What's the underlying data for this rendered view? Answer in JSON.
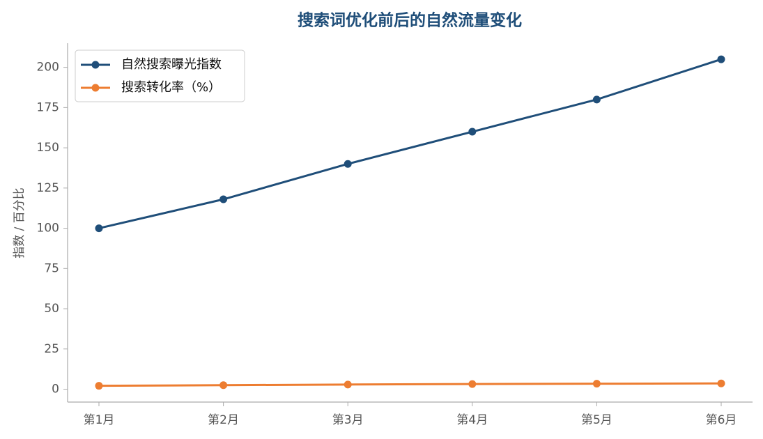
{
  "chart_data": {
    "type": "line",
    "title": "搜索词优化前后的自然流量变化",
    "ylabel": "指数 / 百分比",
    "categories": [
      "第1月",
      "第2月",
      "第3月",
      "第4月",
      "第5月",
      "第6月"
    ],
    "series": [
      {
        "name": "自然搜索曝光指数",
        "color": "#1f4e79",
        "values": [
          100,
          118,
          140,
          160,
          180,
          205
        ]
      },
      {
        "name": "搜索转化率（%）",
        "color": "#ed7d31",
        "values": [
          2.1,
          2.5,
          2.9,
          3.2,
          3.4,
          3.6
        ]
      }
    ],
    "ylim": [
      -8,
      215
    ],
    "yticks": [
      0,
      25,
      50,
      75,
      100,
      125,
      150,
      175,
      200
    ],
    "grid": false,
    "legend": "upper left"
  }
}
